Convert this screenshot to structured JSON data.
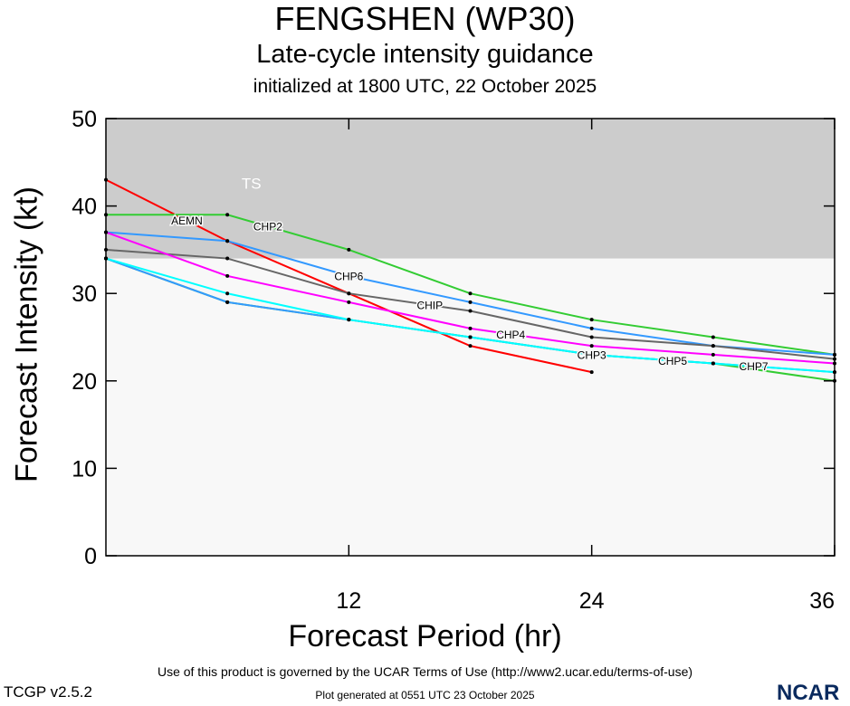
{
  "header": {
    "title": "FENGSHEN (WP30)",
    "subtitle": "Late-cycle intensity guidance",
    "initialized": "initialized at 1800 UTC, 22 October 2025"
  },
  "footer": {
    "terms": "Use of this product is governed by the UCAR Terms of Use (http://www2.ucar.edu/terms-of-use)",
    "generated": "Plot generated at 0551 UTC   23 October 2025",
    "version": "TCGP v2.5.2",
    "logo": "NCAR"
  },
  "chart_data": {
    "type": "line",
    "title": "FENGSHEN (WP30)",
    "xlabel": "Forecast Period (hr)",
    "ylabel": "Forecast Intensity (kt)",
    "xlim": [
      0,
      36
    ],
    "ylim": [
      0,
      50
    ],
    "xticks": [
      12,
      24,
      36
    ],
    "yticks": [
      0,
      10,
      20,
      30,
      40,
      50
    ],
    "x": [
      0,
      6,
      12,
      18,
      24,
      30,
      36
    ],
    "bands": [
      {
        "label": "TS",
        "from": 34,
        "to": 50,
        "color": "#cccccc"
      }
    ],
    "background": "#f8f8f8",
    "series": [
      {
        "name": "AEMN",
        "color": "#ff0000",
        "values": [
          43,
          36,
          30,
          24,
          21,
          null,
          null
        ]
      },
      {
        "name": "CHP2",
        "color": "#33cc33",
        "values": [
          39,
          39,
          35,
          30,
          27,
          25,
          23
        ]
      },
      {
        "name": "CHP6",
        "color": "#3399ff",
        "values": [
          37,
          36,
          32,
          29,
          26,
          24,
          23
        ]
      },
      {
        "name": "CHIP",
        "color": "#666666",
        "values": [
          35,
          34,
          30,
          28,
          25,
          24,
          22.5
        ]
      },
      {
        "name": "CHP4",
        "color": "#ff00ff",
        "values": [
          37,
          32,
          29,
          26,
          24,
          23,
          22
        ]
      },
      {
        "name": "CHP3",
        "color": "#33cc33",
        "values": [
          34,
          29,
          27,
          25,
          23,
          22,
          20
        ]
      },
      {
        "name": "CHP5",
        "color": "#3399ff",
        "values": [
          34,
          29,
          27,
          25,
          23,
          22,
          21
        ]
      },
      {
        "name": "CHP7",
        "color": "#00ffff",
        "values": [
          34,
          30,
          27,
          25,
          23,
          22,
          21
        ]
      }
    ]
  }
}
